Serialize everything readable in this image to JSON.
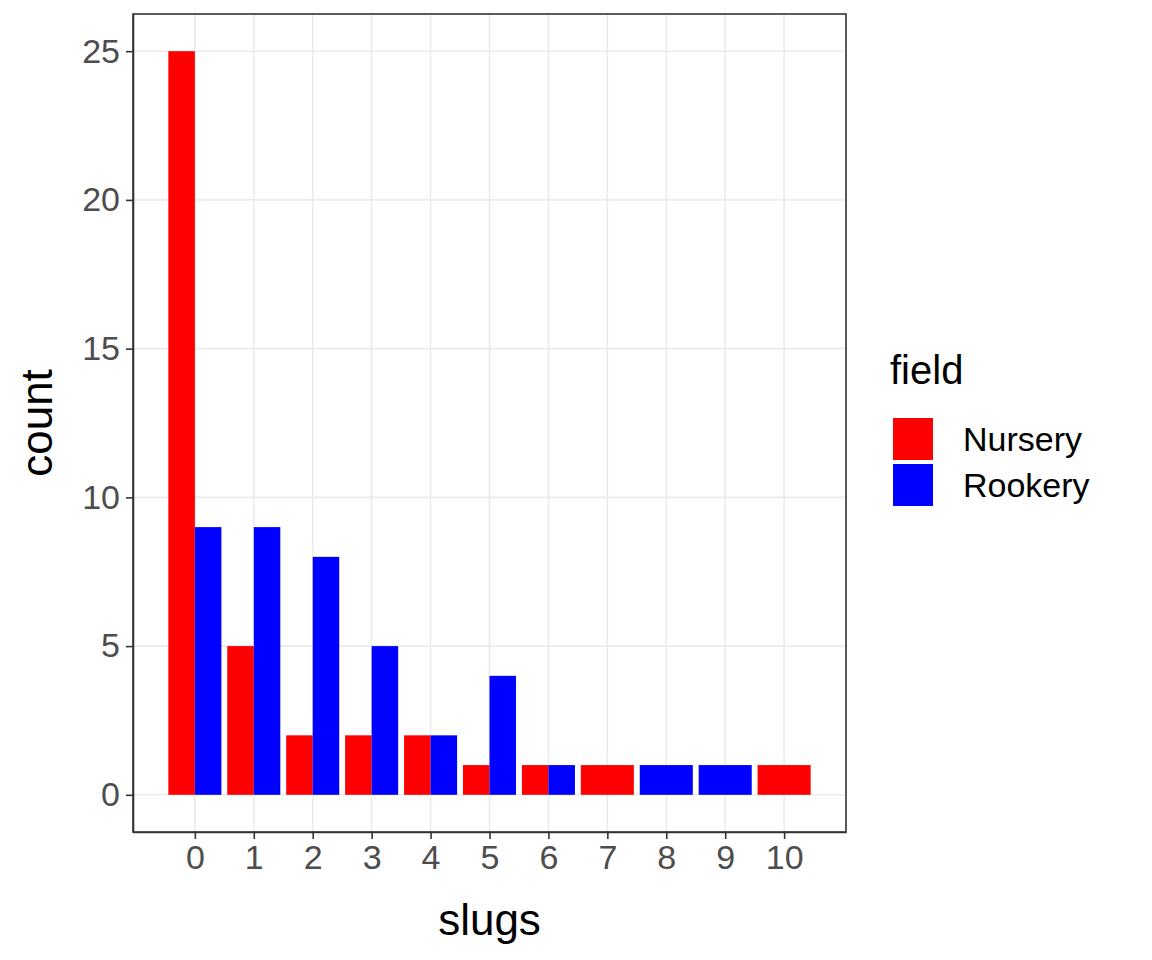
{
  "chart_data": {
    "type": "bar",
    "x_label": "slugs",
    "y_label": "count",
    "categories": [
      "0",
      "1",
      "2",
      "3",
      "4",
      "5",
      "6",
      "7",
      "8",
      "9",
      "10"
    ],
    "series": [
      {
        "name": "Nursery",
        "color": "#ff0000",
        "values": [
          25,
          5,
          2,
          2,
          2,
          1,
          1,
          1,
          null,
          null,
          1
        ]
      },
      {
        "name": "Rookery",
        "color": "#0000ff",
        "values": [
          9,
          9,
          8,
          5,
          2,
          4,
          1,
          null,
          1,
          1,
          null
        ]
      }
    ],
    "ylim": [
      -1.25,
      26.25
    ],
    "yticks": [
      0,
      5,
      10,
      15,
      20,
      25
    ],
    "grid": true,
    "legend": "right",
    "legend_title": "field"
  }
}
